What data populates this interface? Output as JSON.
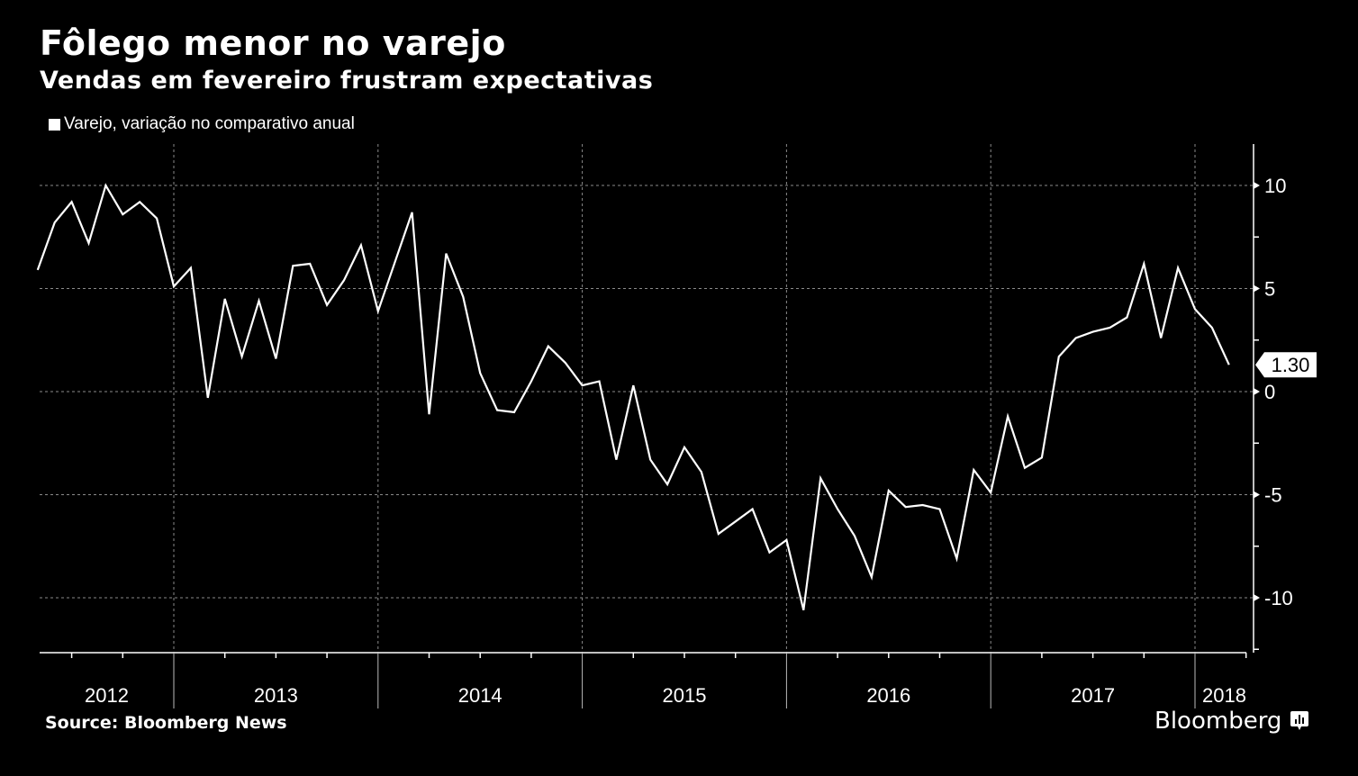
{
  "header": {
    "title": "Fôlego menor no varejo",
    "subtitle": "Vendas em fevereiro frustram expectativas"
  },
  "legend": {
    "label": "Varejo, variação no comparativo anual",
    "swatch_color": "#ffffff"
  },
  "footer": {
    "source": "Source: Bloomberg News",
    "brand": "Bloomberg",
    "brand_icon": "bloomberg-chart-icon"
  },
  "colors": {
    "background": "#000000",
    "line": "#ffffff",
    "grid": "#8a8a8a"
  },
  "chart_data": {
    "type": "line",
    "title": "Fôlego menor no varejo",
    "subtitle": "Vendas em fevereiro frustram expectativas",
    "xlabel": "",
    "ylabel": "",
    "y_axis_side": "right",
    "ylim": [
      -12.5,
      12
    ],
    "y_ticks": [
      10,
      5,
      0,
      -5,
      -10
    ],
    "y_tick_labels": [
      "10",
      "5",
      "0",
      "-5",
      "-10"
    ],
    "x_tick_labels": [
      "2012",
      "2013",
      "2014",
      "2015",
      "2016",
      "2017",
      "2018"
    ],
    "x_start": "2012-04",
    "x_end": "2018-02",
    "grid": true,
    "legend_position": "top-left",
    "last_value_label": "1.30",
    "series": [
      {
        "name": "Varejo, variação no comparativo anual",
        "x": [
          "2012-04",
          "2012-05",
          "2012-06",
          "2012-07",
          "2012-08",
          "2012-09",
          "2012-10",
          "2012-11",
          "2012-12",
          "2013-01",
          "2013-02",
          "2013-03",
          "2013-04",
          "2013-05",
          "2013-06",
          "2013-07",
          "2013-08",
          "2013-09",
          "2013-10",
          "2013-11",
          "2013-12",
          "2014-01",
          "2014-02",
          "2014-03",
          "2014-04",
          "2014-05",
          "2014-06",
          "2014-07",
          "2014-08",
          "2014-09",
          "2014-10",
          "2014-11",
          "2014-12",
          "2015-01",
          "2015-02",
          "2015-03",
          "2015-04",
          "2015-05",
          "2015-06",
          "2015-07",
          "2015-08",
          "2015-09",
          "2015-10",
          "2015-11",
          "2015-12",
          "2016-01",
          "2016-02",
          "2016-03",
          "2016-04",
          "2016-05",
          "2016-06",
          "2016-07",
          "2016-08",
          "2016-09",
          "2016-10",
          "2016-11",
          "2016-12",
          "2017-01",
          "2017-02",
          "2017-03",
          "2017-04",
          "2017-05",
          "2017-06",
          "2017-07",
          "2017-08",
          "2017-09",
          "2017-10",
          "2017-11",
          "2017-12",
          "2018-01",
          "2018-02"
        ],
        "values": [
          5.9,
          8.2,
          9.2,
          7.2,
          10.0,
          8.6,
          9.2,
          8.4,
          5.1,
          6.0,
          -0.3,
          4.5,
          1.7,
          4.4,
          1.6,
          6.1,
          6.2,
          4.2,
          5.4,
          7.1,
          3.9,
          6.3,
          8.7,
          -1.1,
          6.7,
          4.6,
          0.9,
          -0.9,
          -1.0,
          0.5,
          2.2,
          1.4,
          0.3,
          0.5,
          -3.3,
          0.3,
          -3.3,
          -4.5,
          -2.7,
          -3.9,
          -6.9,
          -6.3,
          -5.7,
          -7.8,
          -7.2,
          -10.6,
          -4.2,
          -5.7,
          -7.0,
          -9.0,
          -4.8,
          -5.6,
          -5.5,
          -5.7,
          -8.1,
          -3.8,
          -4.9,
          -1.2,
          -3.7,
          -3.2,
          1.7,
          2.6,
          2.9,
          3.1,
          3.6,
          6.2,
          2.6,
          6.0,
          4.0,
          3.1,
          1.3
        ]
      }
    ]
  }
}
